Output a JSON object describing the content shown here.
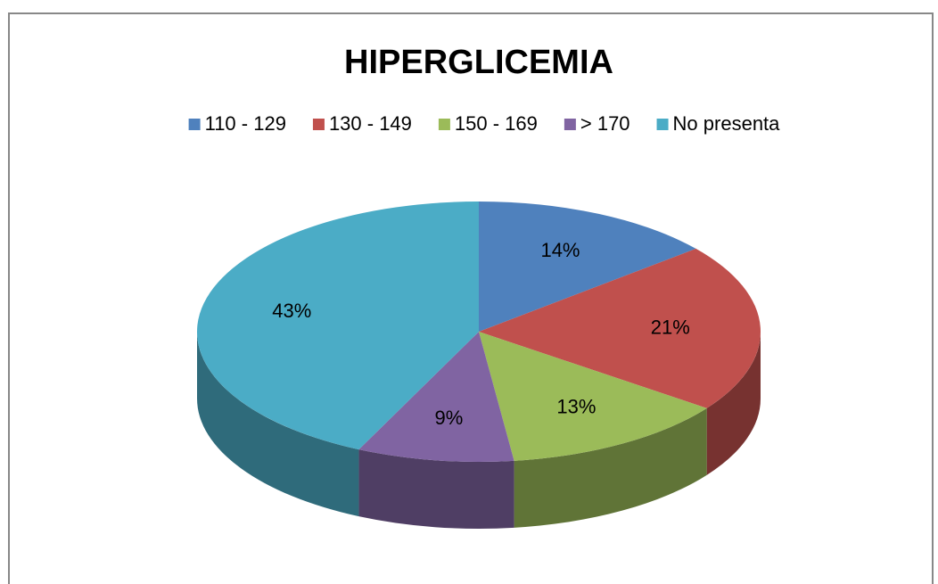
{
  "chart_data": {
    "type": "pie",
    "title": "HIPERGLICEMIA",
    "categories": [
      "110 - 129",
      "130 - 149",
      "150 - 169",
      "> 170",
      "No presenta"
    ],
    "values": [
      14,
      21,
      13,
      9,
      43
    ],
    "value_labels": [
      "14%",
      "21%",
      "13%",
      "9%",
      "43%"
    ],
    "colors": [
      "#4f81bd",
      "#c0504d",
      "#9bbb59",
      "#8064a2",
      "#4bacc6"
    ],
    "legend": "top"
  }
}
